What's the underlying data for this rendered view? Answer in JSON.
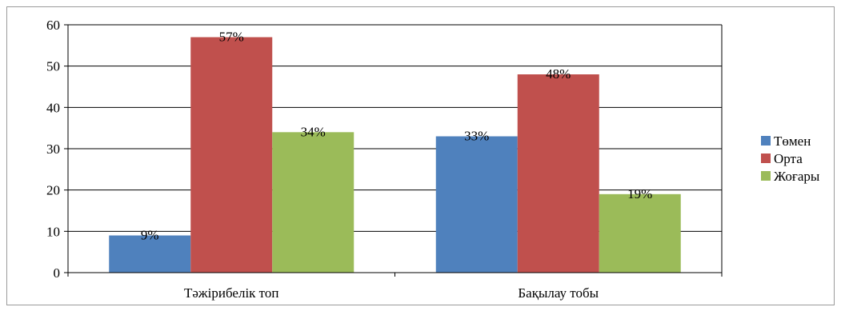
{
  "chart_data": {
    "type": "bar",
    "categories": [
      "Тәжірибелік топ",
      "Бақылау тобы"
    ],
    "series": [
      {
        "name": "Төмен",
        "values": [
          9,
          33
        ],
        "labels": [
          "9%",
          "33%"
        ],
        "color": "#4f81bd"
      },
      {
        "name": "Орта",
        "values": [
          57,
          48
        ],
        "labels": [
          "57%",
          "48%"
        ],
        "color": "#c0504d"
      },
      {
        "name": "Жоғары",
        "values": [
          34,
          19
        ],
        "labels": [
          "34%",
          "19%"
        ],
        "color": "#9bbb59"
      }
    ],
    "ylim": [
      0,
      60
    ],
    "yticks": [
      0,
      10,
      20,
      30,
      40,
      50,
      60
    ],
    "grid": true,
    "legend_position": "right"
  }
}
